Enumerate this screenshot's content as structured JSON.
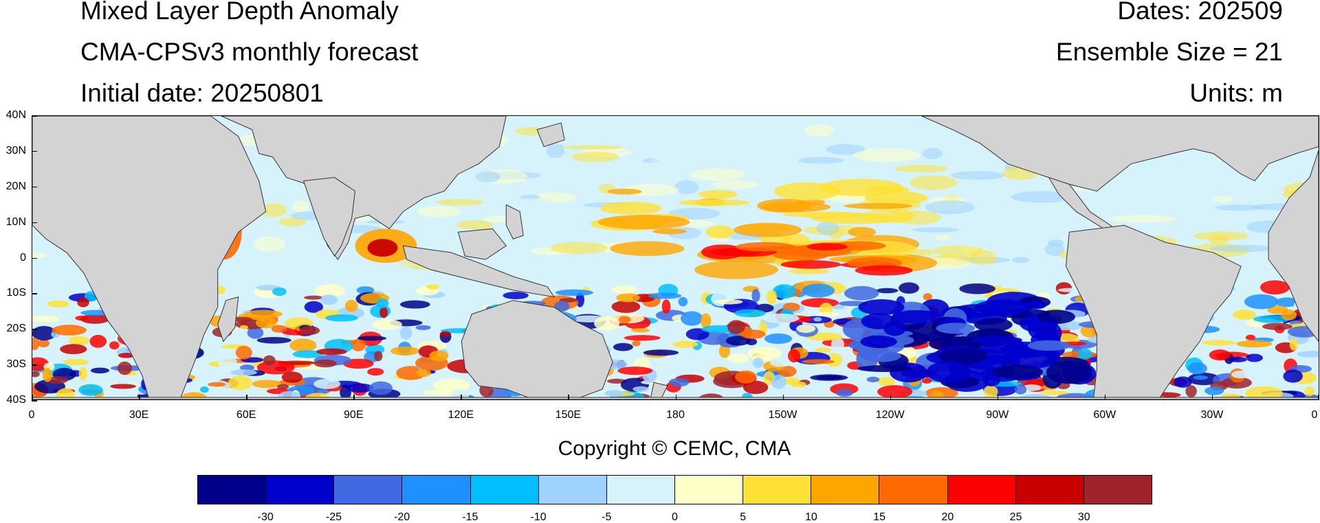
{
  "header": {
    "title": "Mixed Layer Depth Anomaly",
    "model": "CMA-CPSv3 monthly forecast",
    "initial_date": "Initial date: 20250801",
    "dates": "Dates: 202509",
    "ensemble": "Ensemble Size = 21",
    "units": "Units: m"
  },
  "map": {
    "lat_labels": [
      "40N",
      "30N",
      "20N",
      "10N",
      "0",
      "10S",
      "20S",
      "30S",
      "40S"
    ],
    "lon_labels": [
      "0",
      "30E",
      "60E",
      "90E",
      "120E",
      "150E",
      "180",
      "150W",
      "120W",
      "90W",
      "60W",
      "30W",
      "0"
    ],
    "land_color": "#d3d3d3",
    "ocean_base_color": "#d6f3fb"
  },
  "copyright": "Copyright © CEMC, CMA",
  "colorbar": {
    "colors": [
      "#00008b",
      "#0000cd",
      "#4169e1",
      "#1e90ff",
      "#00bfff",
      "#a0d2ff",
      "#d6f3fb",
      "#ffffc8",
      "#ffe135",
      "#ffa500",
      "#ff6a00",
      "#ff0000",
      "#c80000",
      "#a0232a"
    ],
    "labels": [
      "-30",
      "-25",
      "-20",
      "-15",
      "-10",
      "-5",
      "0",
      "5",
      "10",
      "15",
      "20",
      "25",
      "30"
    ]
  }
}
